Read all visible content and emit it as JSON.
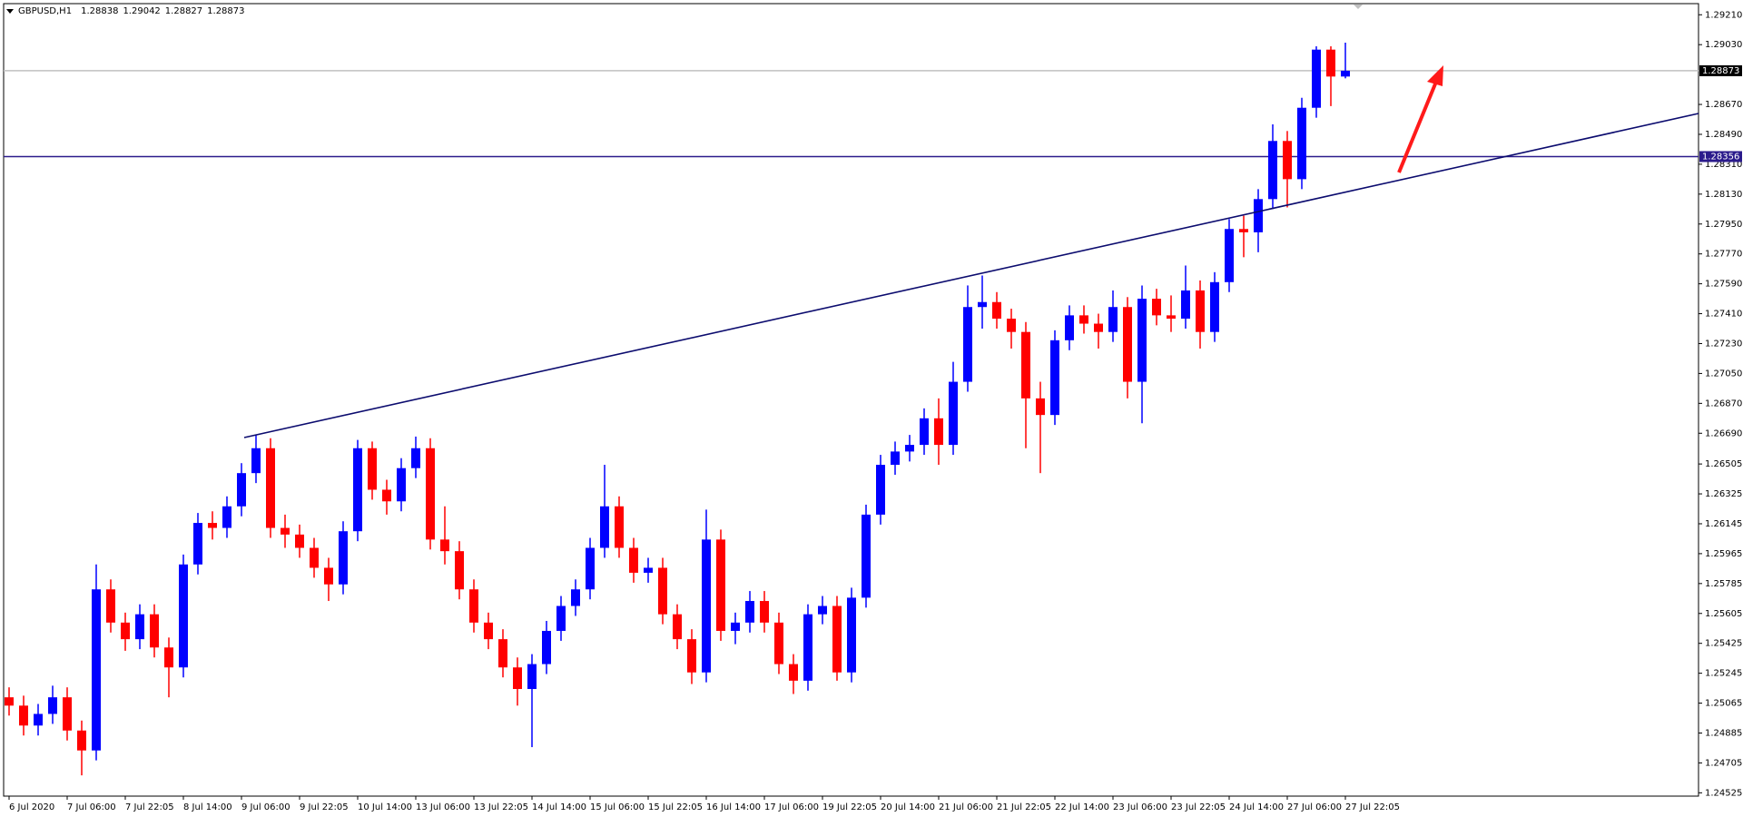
{
  "chart_data": {
    "type": "candlestick",
    "title": "GBPUSD,H1",
    "header_values": [
      1.28838,
      1.29042,
      1.28827,
      1.28873
    ],
    "categories": [
      "6 Jul 2020",
      null,
      null,
      null,
      "7 Jul 06:00",
      null,
      null,
      null,
      "7 Jul 22:05",
      null,
      null,
      null,
      "8 Jul 14:00",
      null,
      null,
      null,
      "9 Jul 06:00",
      null,
      null,
      null,
      "9 Jul 22:05",
      null,
      null,
      null,
      "10 Jul 14:00",
      null,
      null,
      null,
      "13 Jul 06:00",
      null,
      null,
      null,
      "13 Jul 22:05",
      null,
      null,
      null,
      "14 Jul 14:00",
      null,
      null,
      null,
      "15 Jul 06:00",
      null,
      null,
      null,
      "15 Jul 22:05",
      null,
      null,
      null,
      "16 Jul 14:00",
      null,
      null,
      null,
      "17 Jul 06:00",
      null,
      null,
      null,
      "19 Jul 22:05",
      null,
      null,
      null,
      "20 Jul 14:00",
      null,
      null,
      null,
      "21 Jul 06:00",
      null,
      null,
      null,
      "21 Jul 22:05",
      null,
      null,
      null,
      "22 Jul 14:00",
      null,
      null,
      null,
      "23 Jul 06:00",
      null,
      null,
      null,
      "23 Jul 22:05",
      null,
      null,
      null,
      "24 Jul 14:00",
      null,
      null,
      null,
      "27 Jul 06:00",
      null,
      null,
      null,
      "27 Jul 22:05"
    ],
    "open": [
      1.251,
      1.2505,
      1.2493,
      1.25,
      1.251,
      1.249,
      1.2478,
      1.2575,
      1.2555,
      1.2545,
      1.256,
      1.254,
      1.2528,
      1.259,
      1.2615,
      1.2612,
      1.2625,
      1.2645,
      1.266,
      1.2612,
      1.2608,
      1.26,
      1.2588,
      1.2578,
      1.261,
      1.266,
      1.2635,
      1.2628,
      1.2648,
      1.266,
      1.2605,
      1.2598,
      1.2575,
      1.2555,
      1.2545,
      1.2528,
      1.2515,
      1.253,
      1.255,
      1.2565,
      1.2575,
      1.26,
      1.2625,
      1.26,
      1.2585,
      1.2588,
      1.256,
      1.2545,
      1.2525,
      1.2605,
      1.255,
      1.2555,
      1.2568,
      1.2555,
      1.253,
      1.252,
      1.256,
      1.2565,
      1.2525,
      1.257,
      1.262,
      1.265,
      1.2658,
      1.2662,
      1.2678,
      1.2662,
      1.27,
      1.2745,
      1.2748,
      1.2738,
      1.273,
      1.269,
      1.268,
      1.2725,
      1.274,
      1.2735,
      1.273,
      1.2745,
      1.27,
      1.275,
      1.274,
      1.2738,
      1.2755,
      1.273,
      1.276,
      1.2792,
      1.279,
      1.281,
      1.2845,
      1.2822,
      1.2865,
      1.29,
      1.28838
    ],
    "high": [
      1.2516,
      1.2511,
      1.2506,
      1.2517,
      1.2516,
      1.2496,
      1.259,
      1.2581,
      1.2561,
      1.2566,
      1.2566,
      1.2546,
      1.2596,
      1.2621,
      1.2622,
      1.2631,
      1.2651,
      1.2668,
      1.2666,
      1.262,
      1.2614,
      1.2606,
      1.2594,
      1.2616,
      1.2665,
      1.2664,
      1.2641,
      1.2654,
      1.2667,
      1.2666,
      1.2625,
      1.2604,
      1.2581,
      1.2561,
      1.2551,
      1.2534,
      1.2536,
      1.2556,
      1.2571,
      1.2581,
      1.2606,
      1.265,
      1.2631,
      1.2606,
      1.2594,
      1.2594,
      1.2566,
      1.2551,
      1.2623,
      1.2611,
      1.2561,
      1.2574,
      1.2574,
      1.2561,
      1.2536,
      1.2566,
      1.2571,
      1.2571,
      1.2576,
      1.2626,
      1.2656,
      1.2664,
      1.2668,
      1.2684,
      1.269,
      1.2712,
      1.2758,
      1.2764,
      1.2754,
      1.2744,
      1.2736,
      1.27,
      1.2731,
      1.2746,
      1.2746,
      1.2741,
      1.2755,
      1.2751,
      1.2758,
      1.2756,
      1.2752,
      1.277,
      1.2761,
      1.2766,
      1.2798,
      1.28,
      1.2816,
      1.2855,
      1.2851,
      1.2871,
      1.2902,
      1.2902,
      1.29042
    ],
    "low": [
      1.2499,
      1.2487,
      1.2487,
      1.2494,
      1.2484,
      1.2463,
      1.2472,
      1.2549,
      1.2538,
      1.2539,
      1.2534,
      1.251,
      1.2522,
      1.2584,
      1.2605,
      1.2606,
      1.2619,
      1.2639,
      1.2606,
      1.26,
      1.2594,
      1.2582,
      1.2568,
      1.2572,
      1.2604,
      1.2629,
      1.262,
      1.2622,
      1.2642,
      1.2599,
      1.259,
      1.2569,
      1.2549,
      1.2539,
      1.2522,
      1.2505,
      1.248,
      1.2524,
      1.2544,
      1.2559,
      1.2569,
      1.2594,
      1.2594,
      1.2579,
      1.2579,
      1.2554,
      1.2539,
      1.2518,
      1.2519,
      1.2544,
      1.2542,
      1.2549,
      1.2549,
      1.2524,
      1.2512,
      1.2514,
      1.2554,
      1.252,
      1.2519,
      1.2564,
      1.2614,
      1.2644,
      1.2652,
      1.2656,
      1.265,
      1.2656,
      1.2694,
      1.2732,
      1.2732,
      1.272,
      1.266,
      1.2645,
      1.2674,
      1.2719,
      1.2729,
      1.272,
      1.2724,
      1.269,
      1.2675,
      1.2734,
      1.273,
      1.2732,
      1.272,
      1.2724,
      1.2754,
      1.2775,
      1.2778,
      1.2804,
      1.2805,
      1.2816,
      1.2859,
      1.2866,
      1.28827
    ],
    "close": [
      1.2505,
      1.2493,
      1.25,
      1.251,
      1.249,
      1.2478,
      1.2575,
      1.2555,
      1.2545,
      1.256,
      1.254,
      1.2528,
      1.259,
      1.2615,
      1.2612,
      1.2625,
      1.2645,
      1.266,
      1.2612,
      1.2608,
      1.26,
      1.2588,
      1.2578,
      1.261,
      1.266,
      1.2635,
      1.2628,
      1.2648,
      1.266,
      1.2605,
      1.2598,
      1.2575,
      1.2555,
      1.2545,
      1.2528,
      1.2515,
      1.253,
      1.255,
      1.2565,
      1.2575,
      1.26,
      1.2625,
      1.26,
      1.2585,
      1.2588,
      1.256,
      1.2545,
      1.2525,
      1.2605,
      1.255,
      1.2555,
      1.2568,
      1.2555,
      1.253,
      1.252,
      1.256,
      1.2565,
      1.2525,
      1.257,
      1.262,
      1.265,
      1.2658,
      1.2662,
      1.2678,
      1.2662,
      1.27,
      1.2745,
      1.2748,
      1.2738,
      1.273,
      1.269,
      1.268,
      1.2725,
      1.274,
      1.2735,
      1.273,
      1.2745,
      1.27,
      1.275,
      1.274,
      1.2738,
      1.2755,
      1.273,
      1.276,
      1.2792,
      1.279,
      1.281,
      1.2845,
      1.2822,
      1.2865,
      1.29,
      1.28838,
      1.28873
    ],
    "up_color": "#0000ff",
    "down_color": "#ff0000",
    "ylim": [
      1.24505,
      1.29277
    ],
    "yticks": [
      {
        "value": 1.2921,
        "label": "1.29210"
      },
      {
        "value": 1.2903,
        "label": "1.29030"
      },
      {
        "value": 1.2867,
        "label": "1.28670"
      },
      {
        "value": 1.2849,
        "label": "1.28490"
      },
      {
        "value": 1.2831,
        "label": "1.28310"
      },
      {
        "value": 1.2813,
        "label": "1.28130"
      },
      {
        "value": 1.2795,
        "label": "1.27950"
      },
      {
        "value": 1.2777,
        "label": "1.27770"
      },
      {
        "value": 1.2759,
        "label": "1.27590"
      },
      {
        "value": 1.2741,
        "label": "1.27410"
      },
      {
        "value": 1.2723,
        "label": "1.27230"
      },
      {
        "value": 1.2705,
        "label": "1.27050"
      },
      {
        "value": 1.2687,
        "label": "1.26870"
      },
      {
        "value": 1.2669,
        "label": "1.26690"
      },
      1.26505,
      1.26325,
      1.26145,
      1.25965,
      1.25785,
      1.25605,
      1.25425,
      1.25245,
      1.25065,
      1.24885,
      1.24705,
      1.24525
    ],
    "levels": [
      {
        "value": 1.28873,
        "color": "#c0c0c0",
        "label_color": "#000000"
      },
      {
        "value": 1.28356,
        "color": "#2b1b8c",
        "label_color": "#2b1b8c"
      }
    ]
  }
}
